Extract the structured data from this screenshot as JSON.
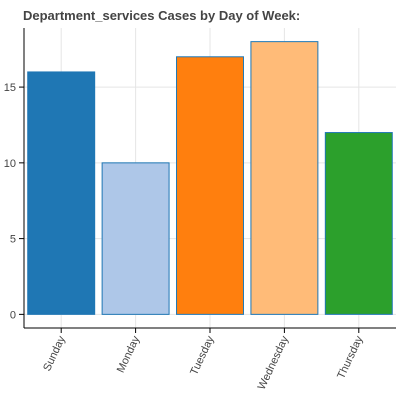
{
  "chart_data": {
    "type": "bar",
    "title": "Department_services Cases by Day of Week:",
    "xlabel": "",
    "ylabel": "",
    "categories": [
      "Sunday",
      "Monday",
      "Tuesday",
      "Wednesday",
      "Thursday"
    ],
    "values": [
      16,
      10,
      17,
      18,
      12
    ],
    "bar_colors": [
      "#1f77b4",
      "#aec7e8",
      "#ff7f0e",
      "#ffbb78",
      "#2ca02c"
    ],
    "bar_outline_color": "#1f77b4",
    "ylim": [
      -0.9,
      18.9
    ],
    "yticks": [
      0,
      5,
      10,
      15
    ],
    "grid": true,
    "legend": "none",
    "x_tick_rotation": "rotated ~65 degrees counter-clockwise"
  }
}
